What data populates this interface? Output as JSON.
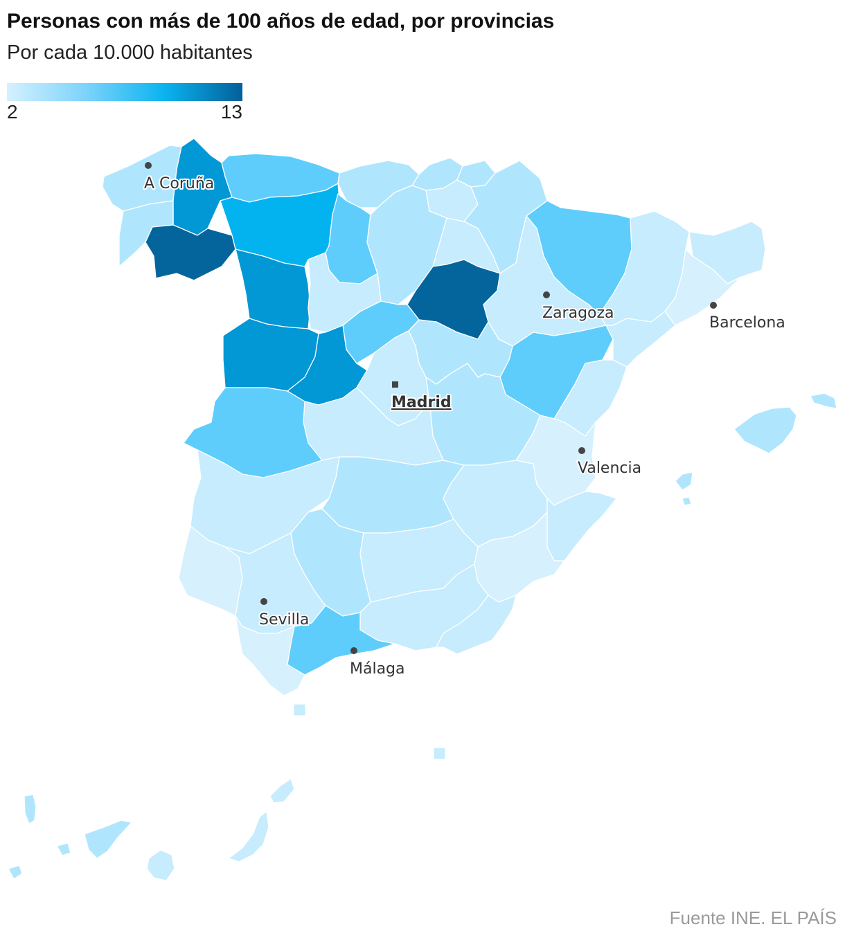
{
  "title": "Personas con más de 100 años de edad, por provincias",
  "subtitle": "Por cada 10.000 habitantes",
  "legend": {
    "min_label": "2",
    "max_label": "13",
    "colors": [
      "#d4f1ff",
      "#7dd3fb",
      "#0bb4f0",
      "#03609a"
    ]
  },
  "source": "Fuente INE. EL PAÍS",
  "palette": {
    "c1": "#d6f0fd",
    "c2": "#c6ecfd",
    "c3": "#b0e6fd",
    "c4": "#5ecdfc",
    "c5": "#03b3ef",
    "c6": "#0297d5",
    "c7": "#04659c"
  },
  "cities": [
    {
      "key": "coruna",
      "name": "A Coruña",
      "capital": false
    },
    {
      "key": "zaragoza",
      "name": "Zaragoza",
      "capital": false
    },
    {
      "key": "barcelona",
      "name": "Barcelona",
      "capital": false
    },
    {
      "key": "madrid",
      "name": "Madrid",
      "capital": true
    },
    {
      "key": "valencia",
      "name": "Valencia",
      "capital": false
    },
    {
      "key": "sevilla",
      "name": "Sevilla",
      "capital": false
    },
    {
      "key": "malaga",
      "name": "Málaga",
      "capital": false
    }
  ]
}
